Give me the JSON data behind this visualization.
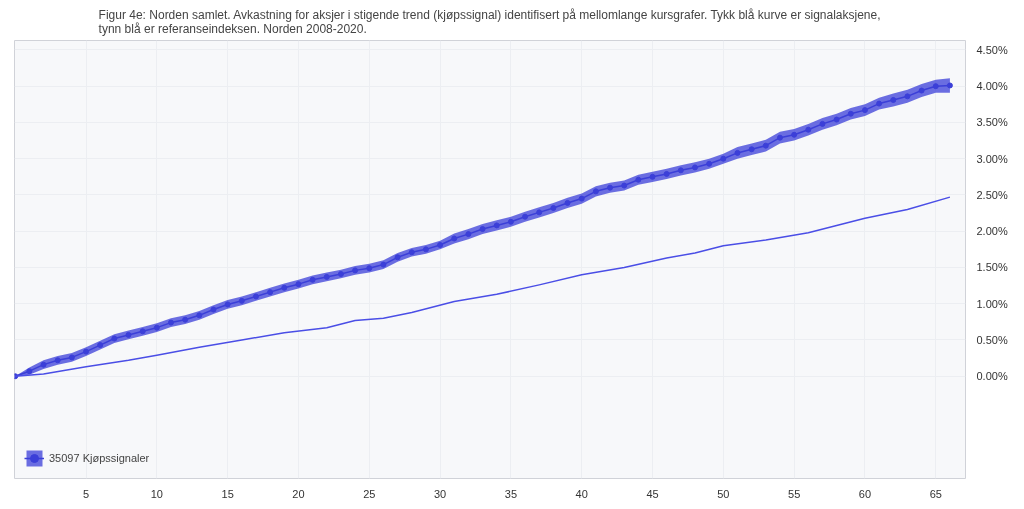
{
  "chart_data": {
    "type": "line",
    "title": "Figur 4e: Norden samlet. Avkastning for aksjer i stigende trend (kjøpssignal) identifisert på mellomlange kursgrafer. Tykk blå kurve er signalaksjene, tynn blå er referanseindeksen. Norden 2008-2020.",
    "xlim": [
      -0.05,
      67.1
    ],
    "ylim": [
      -1.41,
      4.63
    ],
    "xticks": [
      5,
      10,
      15,
      20,
      25,
      30,
      35,
      40,
      45,
      50,
      55,
      60,
      65
    ],
    "yticks": [
      {
        "value": 0,
        "label": "0.00%"
      },
      {
        "value": 0.5,
        "label": "0.50%"
      },
      {
        "value": 1,
        "label": "1.00%"
      },
      {
        "value": 1.5,
        "label": "1.50%"
      },
      {
        "value": 2,
        "label": "2.00%"
      },
      {
        "value": 2.5,
        "label": "2.50%"
      },
      {
        "value": 3,
        "label": "3.00%"
      },
      {
        "value": 3.5,
        "label": "3.50%"
      },
      {
        "value": 4,
        "label": "4.00%"
      },
      {
        "value": 4.5,
        "label": "4.50%"
      }
    ],
    "grid": true,
    "legend": "bottom left",
    "series": [
      {
        "name": "35097 Kjøpssignaler",
        "color": "#3b3fd8",
        "marker": "circle",
        "x": [
          0,
          1,
          2,
          3,
          4,
          5,
          6,
          7,
          8,
          9,
          10,
          11,
          12,
          13,
          14,
          15,
          16,
          17,
          18,
          19,
          20,
          21,
          22,
          23,
          24,
          25,
          26,
          27,
          28,
          29,
          30,
          31,
          32,
          33,
          34,
          35,
          36,
          37,
          38,
          39,
          40,
          41,
          42,
          43,
          44,
          45,
          46,
          47,
          48,
          49,
          50,
          51,
          52,
          53,
          54,
          55,
          56,
          57,
          58,
          59,
          60,
          61,
          62,
          63,
          64,
          65,
          66
        ],
        "values": [
          0,
          0.07,
          0.16,
          0.22,
          0.26,
          0.34,
          0.43,
          0.52,
          0.57,
          0.62,
          0.67,
          0.74,
          0.78,
          0.84,
          0.92,
          0.99,
          1.04,
          1.1,
          1.16,
          1.22,
          1.27,
          1.33,
          1.37,
          1.41,
          1.46,
          1.49,
          1.54,
          1.64,
          1.71,
          1.75,
          1.81,
          1.9,
          1.96,
          2.03,
          2.08,
          2.13,
          2.2,
          2.26,
          2.32,
          2.39,
          2.45,
          2.55,
          2.6,
          2.63,
          2.71,
          2.75,
          2.79,
          2.84,
          2.88,
          2.93,
          3.0,
          3.08,
          3.13,
          3.18,
          3.29,
          3.33,
          3.4,
          3.48,
          3.54,
          3.62,
          3.67,
          3.76,
          3.81,
          3.86,
          3.94,
          4.0,
          4.01
        ],
        "lower": [
          0,
          0.02,
          0.1,
          0.16,
          0.2,
          0.28,
          0.37,
          0.46,
          0.51,
          0.56,
          0.61,
          0.68,
          0.72,
          0.78,
          0.86,
          0.93,
          0.98,
          1.04,
          1.1,
          1.16,
          1.21,
          1.27,
          1.31,
          1.35,
          1.4,
          1.43,
          1.48,
          1.58,
          1.65,
          1.69,
          1.75,
          1.83,
          1.89,
          1.96,
          2.01,
          2.06,
          2.13,
          2.19,
          2.25,
          2.32,
          2.38,
          2.48,
          2.53,
          2.56,
          2.64,
          2.68,
          2.72,
          2.77,
          2.81,
          2.86,
          2.93,
          3.0,
          3.05,
          3.1,
          3.21,
          3.25,
          3.32,
          3.4,
          3.46,
          3.54,
          3.59,
          3.68,
          3.72,
          3.77,
          3.85,
          3.91,
          3.91
        ],
        "upper": [
          0,
          0.12,
          0.22,
          0.28,
          0.32,
          0.4,
          0.49,
          0.58,
          0.63,
          0.68,
          0.73,
          0.8,
          0.84,
          0.9,
          0.98,
          1.05,
          1.1,
          1.16,
          1.22,
          1.28,
          1.33,
          1.39,
          1.43,
          1.47,
          1.52,
          1.55,
          1.6,
          1.7,
          1.77,
          1.81,
          1.87,
          1.97,
          2.03,
          2.1,
          2.15,
          2.2,
          2.27,
          2.33,
          2.39,
          2.46,
          2.52,
          2.62,
          2.67,
          2.7,
          2.78,
          2.82,
          2.86,
          2.91,
          2.95,
          3.0,
          3.07,
          3.16,
          3.21,
          3.26,
          3.37,
          3.41,
          3.48,
          3.56,
          3.62,
          3.7,
          3.75,
          3.84,
          3.9,
          3.95,
          4.03,
          4.09,
          4.11
        ]
      },
      {
        "color": "#4a4ee6",
        "marker": "none",
        "x": [
          0,
          2,
          5,
          8,
          10,
          13,
          16,
          19,
          22,
          24,
          26,
          28,
          31,
          34,
          37,
          40,
          43,
          46,
          48,
          50,
          53,
          56,
          58,
          60,
          63,
          66
        ],
        "values": [
          0,
          0.03,
          0.13,
          0.22,
          0.29,
          0.4,
          0.5,
          0.6,
          0.67,
          0.77,
          0.8,
          0.88,
          1.03,
          1.13,
          1.26,
          1.4,
          1.5,
          1.63,
          1.7,
          1.8,
          1.88,
          1.98,
          2.08,
          2.18,
          2.3,
          2.47
        ]
      }
    ]
  }
}
